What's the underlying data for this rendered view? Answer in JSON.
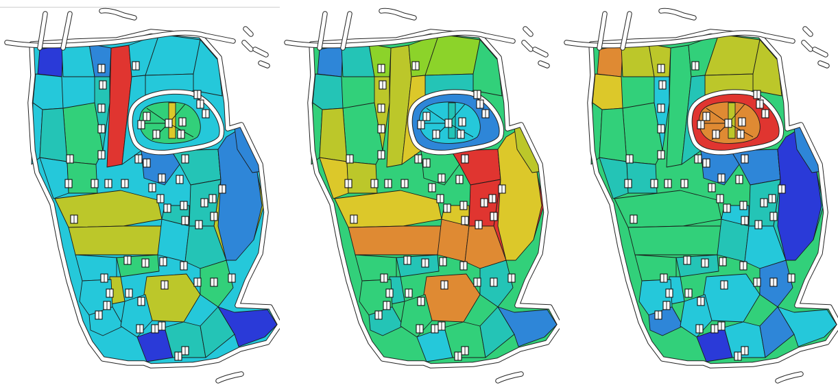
{
  "figure": {
    "panels": [
      {
        "id": "panel-left",
        "scheme": "left"
      },
      {
        "id": "panel-middle",
        "scheme": "middle"
      },
      {
        "id": "panel-right",
        "scheme": "right"
      }
    ]
  },
  "palette": {
    "red": "#e03530",
    "orange": "#df8a33",
    "yellow": "#dcc82a",
    "olive": "#bcc72a",
    "lime": "#8cd32a",
    "green": "#32d07a",
    "teal": "#24c4b6",
    "cyan": "#25c8da",
    "blue": "#2e86d8",
    "indigo": "#2a3ad8"
  },
  "schemes": {
    "left": {
      "c00": "indigo",
      "c01": "cyan",
      "c02": "cyan",
      "c03": "red",
      "c04": "blue",
      "c05": "cyan",
      "c06": "cyan",
      "c07": "cyan",
      "c08": "cyan",
      "c09": "cyan",
      "c10": "green",
      "c11": "teal",
      "c12": "teal",
      "c13": "cyan",
      "c14": "blue",
      "c15": "teal",
      "c16": "green",
      "c17": "cyan",
      "c18": "green",
      "c19": "olive",
      "c20": "olive",
      "c21": "teal",
      "c22": "olive",
      "c23": "cyan",
      "c24": "teal",
      "c25": "teal",
      "c26": "cyan",
      "c27": "green",
      "c28": "olive",
      "c29": "olive",
      "c30": "cyan",
      "c31": "green",
      "c32": "cyan",
      "c33": "cyan",
      "c34": "indigo",
      "c35": "teal",
      "c36": "teal",
      "ring": "cyan",
      "inner": "green",
      "innerStripe": "yellow",
      "east": "blue",
      "southEast": "indigo",
      "northEast": "blue"
    },
    "middle": {
      "c00": "blue",
      "c01": "teal",
      "c02": "teal",
      "c03": "olive",
      "c04": "lime",
      "c05": "lime",
      "c06": "lime",
      "c07": "green",
      "c08": "teal",
      "c09": "green",
      "c10": "green",
      "c11": "olive",
      "c12": "olive",
      "c13": "yellow",
      "c14": "green",
      "c15": "red",
      "c16": "red",
      "c17": "yellow",
      "c18": "olive",
      "c19": "yellow",
      "c20": "red",
      "c21": "red",
      "c22": "orange",
      "c23": "orange",
      "c24": "yellow",
      "c25": "orange",
      "c26": "green",
      "c27": "teal",
      "c28": "orange",
      "c29": "teal",
      "c30": "green",
      "c31": "teal",
      "c32": "teal",
      "c33": "green",
      "c34": "cyan",
      "c35": "green",
      "c36": "teal",
      "ring": "blue",
      "inner": "cyan",
      "innerStripe": "teal",
      "east": "yellow",
      "southEast": "blue",
      "northEast": "olive"
    },
    "right": {
      "c00": "orange",
      "c01": "yellow",
      "c02": "olive",
      "c03": "green",
      "c04": "olive",
      "c05": "green",
      "c06": "olive",
      "c07": "olive",
      "c08": "olive",
      "c09": "green",
      "c10": "green",
      "c11": "green",
      "c12": "cyan",
      "c13": "teal",
      "c14": "blue",
      "c15": "blue",
      "c16": "indigo",
      "c17": "teal",
      "c18": "teal",
      "c19": "green",
      "c20": "teal",
      "c21": "teal",
      "c22": "green",
      "c23": "teal",
      "c24": "cyan",
      "c25": "cyan",
      "c26": "green",
      "c27": "teal",
      "c28": "cyan",
      "c29": "cyan",
      "c30": "cyan",
      "c31": "blue",
      "c32": "blue",
      "c33": "cyan",
      "c34": "indigo",
      "c35": "cyan",
      "c36": "blue",
      "ring": "red",
      "inner": "orange",
      "innerStripe": "olive",
      "east": "indigo",
      "southEast": "cyan",
      "northEast": "blue"
    }
  }
}
